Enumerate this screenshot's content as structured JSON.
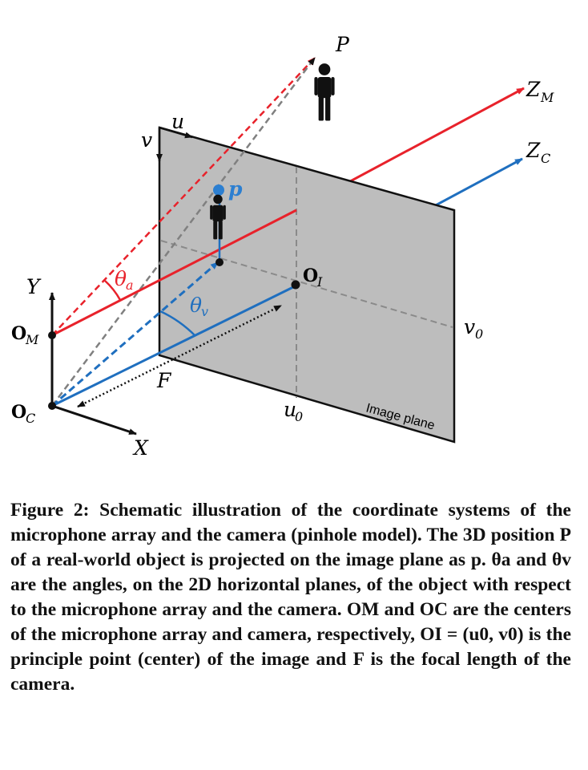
{
  "diagram": {
    "labels": {
      "P": "P",
      "p": "p",
      "Z": "Z",
      "sub_M": "M",
      "sub_C": "C",
      "sub_I": "I",
      "O": "O",
      "u": "u",
      "v": "v",
      "theta": "θ",
      "sub_a": "a",
      "sub_v": "v",
      "Y": "Y",
      "X": "X",
      "F": "F",
      "u0": "u",
      "v0": "v",
      "zero": "0",
      "image_plane": "Image plane"
    },
    "colors": {
      "mic": "#e8222b",
      "cam": "#1f6fbf",
      "plane": "#bdbdbd",
      "guide": "#808080",
      "ink": "#111111",
      "projected_point": "#2c7fd1"
    },
    "icons": [
      "person-icon",
      "person-icon"
    ]
  },
  "caption": {
    "text": "Figure 2: Schematic illustration of the coordinate systems of the microphone array and the camera (pinhole model). The 3D position P of a real-world object is projected on the image plane as p. θa and θv are the angles, on the 2D horizontal planes, of the object with respect to the microphone array and the camera. OM and OC are the centers of the microphone array and camera, respectively, OI = (u0, v0) is the principle point (center) of the image and F is the focal length of the camera."
  }
}
